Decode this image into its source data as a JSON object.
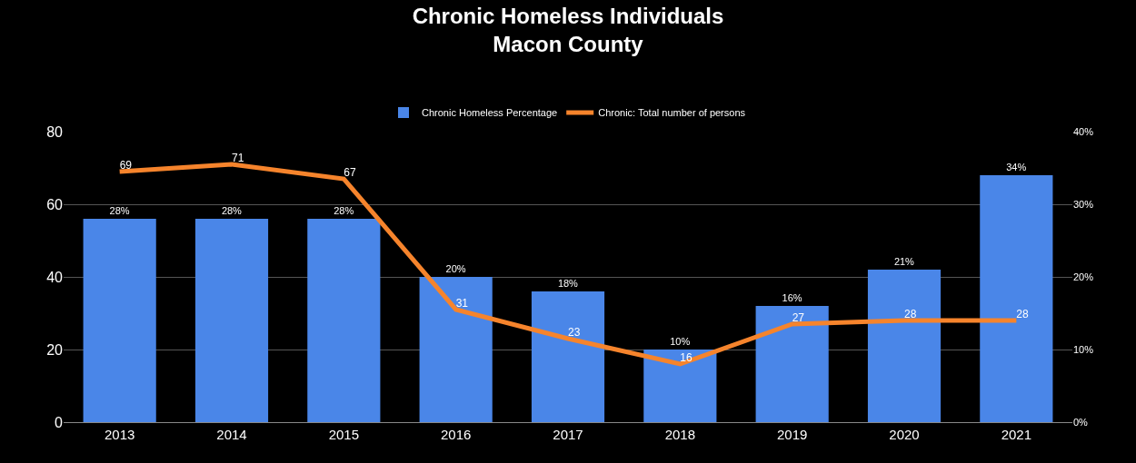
{
  "chart_data": {
    "type": "bar",
    "title": "Chronic Homeless Individuals\nMacon County",
    "categories": [
      "2013",
      "2014",
      "2015",
      "2016",
      "2017",
      "2018",
      "2019",
      "2020",
      "2021"
    ],
    "series": [
      {
        "name": "Chronic Homeless Percentage",
        "axis": "y2",
        "color": "#4a86e8",
        "values": [
          28,
          28,
          28,
          20,
          18,
          10,
          16,
          21,
          34
        ],
        "value_labels": [
          "28%",
          "28%",
          "28%",
          "20%",
          "18%",
          "10%",
          "16%",
          "21%",
          "34%"
        ]
      },
      {
        "name": "Chronic: Total number of persons",
        "type": "line",
        "axis": "y",
        "color": "#f6842c",
        "values": [
          69,
          71,
          67,
          31,
          23,
          16,
          27,
          28,
          28
        ],
        "value_labels": [
          "69",
          "71",
          "67",
          "31",
          "23",
          "16",
          "27",
          "28",
          "28"
        ]
      }
    ],
    "ylim": [
      0,
      80
    ],
    "yticks": [
      0,
      20,
      40,
      60,
      80
    ],
    "y2lim": [
      0,
      40
    ],
    "y2ticks": [
      {
        "value": 0,
        "label": "0%"
      },
      {
        "value": 10,
        "label": "10%"
      },
      {
        "value": 20,
        "label": "20%"
      },
      {
        "value": 30,
        "label": "30%"
      },
      {
        "value": 40,
        "label": "40%"
      }
    ],
    "grid": "y",
    "legend": "top",
    "marker": "none",
    "line_style": "solid"
  }
}
